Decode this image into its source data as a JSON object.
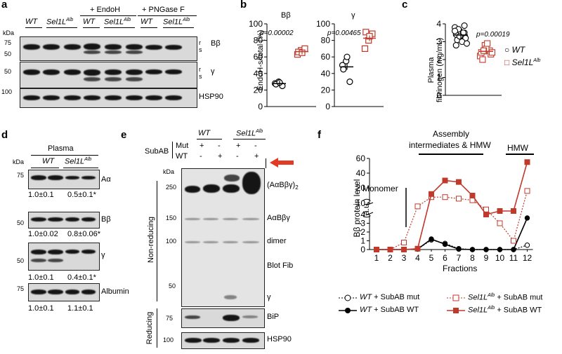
{
  "panels": {
    "a": "a",
    "b": "b",
    "c": "c",
    "d": "d",
    "e": "e",
    "f": "f"
  },
  "a": {
    "kda": "kDa",
    "groups": [
      "WT",
      "Sel1L",
      "WT",
      "Sel1L",
      "WT",
      "Sel1L"
    ],
    "sup": "Alb",
    "endoh": "+ EndoH",
    "pngase": "+ PNGase F",
    "mw": [
      "75",
      "50",
      "50",
      "100"
    ],
    "labels": {
      "bb": "Bβ",
      "g": "γ",
      "hsp": "HSP90",
      "r": "r",
      "s": "s"
    }
  },
  "b": {
    "ylabel": "EndoH-s/total (%)",
    "titles": [
      "Bβ",
      "γ"
    ],
    "p": [
      "p=0.00002",
      "p=0.00465"
    ],
    "yticks1": [
      "0",
      "20",
      "40",
      "60",
      "80",
      "100"
    ],
    "yticks2": [
      "0",
      "20",
      "40",
      "60",
      "80",
      "100"
    ]
  },
  "c": {
    "ylabel1": "Plasma",
    "ylabel2": "fibrinogen (mg/mL)",
    "p": "p=0.00019",
    "yticks": [
      "0",
      "1",
      "2",
      "3",
      "4"
    ],
    "legend": {
      "wt": "WT",
      "sel": "Sel1L",
      "sup": "Alb"
    }
  },
  "d": {
    "title": "Plasma",
    "kda": "kDa",
    "groups": [
      "WT",
      "Sel1L"
    ],
    "sup": "Alb",
    "rows": [
      {
        "mw": "75",
        "label": "Aα",
        "q1": "1.0±0.1",
        "q2": "0.5±0.1*"
      },
      {
        "mw": "50",
        "label": "Bβ",
        "q1": "1.0±0.02",
        "q2": "0.8±0.06*"
      },
      {
        "mw": "50",
        "label": "γ",
        "q1": "1.0±0.1",
        "q2": "0.4±0.1*"
      },
      {
        "mw": "75",
        "label": "Albumin",
        "q1": "1.0±0.1",
        "q2": "1.1±0.1"
      }
    ]
  },
  "e": {
    "groups": [
      "WT",
      "Sel1L"
    ],
    "sup": "Alb",
    "subab": "SubAB",
    "mut": "Mut",
    "wt": "WT",
    "mutsigns": [
      "+",
      "-",
      "+",
      "-"
    ],
    "wtsigns": [
      "-",
      "+",
      "-",
      "+"
    ],
    "kda": "kDa",
    "mw": [
      "250",
      "150",
      "100",
      "50"
    ],
    "mw2": [
      "75",
      "100"
    ],
    "labels": {
      "hex": "(AαBβγ)",
      "hexsub": "2",
      "tri": "AαBβγ",
      "dimer": "dimer",
      "blot": "Blot Fib",
      "g": "γ",
      "bip": "BiP",
      "hsp": "HSP90"
    },
    "nonred": "Non-reducing",
    "red": "Reducing"
  },
  "f": {
    "ylabel1": "Bβ protein level",
    "ylabel2": "(a.u.)",
    "xlabel": "Fractions",
    "assembly1": "Assembly",
    "assembly2": "intermediates & HMW",
    "hmw": "HMW",
    "monomer": "Monomer",
    "yticks_low": [
      "0",
      "1",
      "2",
      "3",
      "4"
    ],
    "yticks_high": [
      "10",
      "20",
      "40",
      "60"
    ],
    "legend": [
      {
        "g": "WT",
        "t": " + SubAB mut"
      },
      {
        "g": "WT",
        "t": " + SubAB WT"
      },
      {
        "g": "Sel1L",
        "sup": "Alb",
        "t": " + SubAB mut"
      },
      {
        "g": "Sel1L",
        "sup": "Alb",
        "t": " + SubAB WT"
      }
    ]
  },
  "chart_data": [
    {
      "type": "scatter",
      "title": "Bβ",
      "ylabel": "EndoH-s/total (%)",
      "ylim": [
        0,
        100
      ],
      "categories": [
        "WT",
        "Sel1L Alb"
      ],
      "series": [
        {
          "name": "WT",
          "values": [
            28,
            30,
            25,
            27,
            29
          ]
        },
        {
          "name": "Sel1L Alb",
          "values": [
            63,
            68,
            70,
            66,
            65
          ]
        }
      ],
      "annotation": "p=0.00002"
    },
    {
      "type": "scatter",
      "title": "γ",
      "ylim": [
        0,
        100
      ],
      "categories": [
        "WT",
        "Sel1L Alb"
      ],
      "series": [
        {
          "name": "WT",
          "values": [
            50,
            55,
            30,
            45,
            60
          ]
        },
        {
          "name": "Sel1L Alb",
          "values": [
            70,
            80,
            88,
            90,
            85
          ]
        }
      ],
      "annotation": "p=0.00465"
    },
    {
      "type": "scatter",
      "ylabel": "Plasma fibrinogen (mg/mL)",
      "ylim": [
        0,
        4
      ],
      "categories": [
        "WT",
        "Sel1L Alb"
      ],
      "series": [
        {
          "name": "WT",
          "values": [
            3.8,
            3.6,
            3.5,
            3.4,
            3.3,
            3.2,
            3.1,
            3.0,
            2.9,
            3.7,
            3.5,
            3.6,
            3.3,
            3.9,
            2.8
          ]
        },
        {
          "name": "Sel1L Alb",
          "values": [
            2.2,
            2.8,
            2.5,
            2.4,
            2.6,
            2.3,
            2.0,
            2.9,
            2.4,
            2.5
          ]
        }
      ],
      "annotation": "p=0.00019"
    },
    {
      "type": "line",
      "xlabel": "Fractions",
      "ylabel": "Bβ protein level (a.u.)",
      "x": [
        1,
        2,
        3,
        4,
        5,
        6,
        7,
        8,
        9,
        10,
        11,
        12
      ],
      "series": [
        {
          "name": "WT + SubAB mut",
          "values": [
            0,
            0,
            0,
            0.05,
            1.1,
            0.7,
            0.1,
            0,
            0,
            0,
            0,
            0.5
          ]
        },
        {
          "name": "WT + SubAB WT",
          "values": [
            0,
            0,
            0,
            0.05,
            1.2,
            0.6,
            0.05,
            0,
            0,
            0,
            0,
            3.6
          ]
        },
        {
          "name": "Sel1L Alb + SubAB mut",
          "values": [
            0,
            0,
            0.8,
            8,
            14,
            14,
            13,
            12,
            6,
            3,
            1,
            18
          ]
        },
        {
          "name": "Sel1L Alb + SubAB WT",
          "values": [
            0,
            0,
            0,
            0.1,
            16,
            30,
            28,
            15,
            4,
            5,
            5,
            55
          ]
        }
      ]
    }
  ]
}
